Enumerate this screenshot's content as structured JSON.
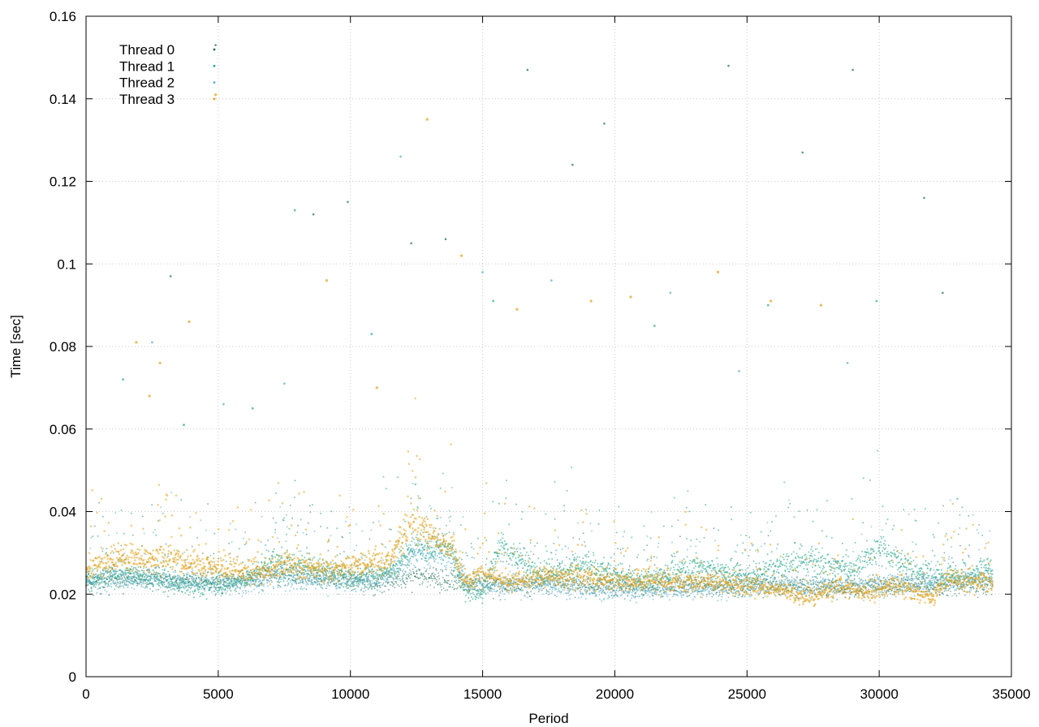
{
  "chart_data": {
    "type": "scatter",
    "title": "",
    "xlabel": "Period",
    "ylabel": "Time [sec]",
    "xlim": [
      0,
      35000
    ],
    "ylim": [
      0,
      0.16
    ],
    "xticks": [
      0,
      5000,
      10000,
      15000,
      20000,
      25000,
      30000,
      35000
    ],
    "xtick_labels": [
      "0",
      "5000",
      "10000",
      "15000",
      "20000",
      "25000",
      "30000",
      "35000"
    ],
    "yticks": [
      0,
      0.02,
      0.04,
      0.06,
      0.08,
      0.1,
      0.12,
      0.14,
      0.16
    ],
    "ytick_labels": [
      "0",
      "0.02",
      "0.04",
      "0.06",
      "0.08",
      "0.1",
      "0.12",
      "0.14",
      "0.16"
    ],
    "grid": true,
    "legend_position": "top-left",
    "x_max_observed": 34300,
    "series": [
      {
        "name": "Thread 0",
        "color": "#1a6b52",
        "trend": [
          [
            0,
            0.023
          ],
          [
            2000,
            0.024
          ],
          [
            4000,
            0.023
          ],
          [
            6000,
            0.023
          ],
          [
            7000,
            0.025
          ],
          [
            9000,
            0.024
          ],
          [
            11000,
            0.023
          ],
          [
            12500,
            0.024
          ],
          [
            14000,
            0.023
          ],
          [
            16000,
            0.022
          ],
          [
            18000,
            0.023
          ],
          [
            20000,
            0.022
          ],
          [
            22000,
            0.022
          ],
          [
            24000,
            0.022
          ],
          [
            26000,
            0.022
          ],
          [
            28000,
            0.021
          ],
          [
            30000,
            0.022
          ],
          [
            32000,
            0.022
          ],
          [
            34300,
            0.022
          ]
        ],
        "outliers": [
          [
            3200,
            0.097
          ],
          [
            4900,
            0.153
          ],
          [
            8600,
            0.112
          ],
          [
            9900,
            0.115
          ],
          [
            12300,
            0.105
          ],
          [
            13600,
            0.106
          ],
          [
            16700,
            0.147
          ],
          [
            18400,
            0.124
          ],
          [
            19600,
            0.134
          ],
          [
            24300,
            0.148
          ],
          [
            27100,
            0.127
          ],
          [
            29000,
            0.147
          ],
          [
            31700,
            0.116
          ],
          [
            32400,
            0.093
          ]
        ]
      },
      {
        "name": "Thread 1",
        "color": "#2aa88a",
        "trend": [
          [
            0,
            0.023
          ],
          [
            1500,
            0.025
          ],
          [
            3000,
            0.023
          ],
          [
            4500,
            0.022
          ],
          [
            6000,
            0.023
          ],
          [
            7000,
            0.028
          ],
          [
            8500,
            0.026
          ],
          [
            10000,
            0.024
          ],
          [
            11500,
            0.025
          ],
          [
            12500,
            0.032
          ],
          [
            13800,
            0.031
          ],
          [
            14300,
            0.021
          ],
          [
            15000,
            0.02
          ],
          [
            15700,
            0.032
          ],
          [
            17000,
            0.025
          ],
          [
            19000,
            0.027
          ],
          [
            21000,
            0.023
          ],
          [
            23000,
            0.027
          ],
          [
            25000,
            0.024
          ],
          [
            27000,
            0.028
          ],
          [
            29000,
            0.026
          ],
          [
            30000,
            0.031
          ],
          [
            31000,
            0.027
          ],
          [
            32500,
            0.024
          ],
          [
            34300,
            0.026
          ]
        ],
        "outliers": [
          [
            1400,
            0.072
          ],
          [
            3700,
            0.061
          ],
          [
            6300,
            0.065
          ],
          [
            7900,
            0.113
          ],
          [
            10800,
            0.083
          ],
          [
            15400,
            0.091
          ],
          [
            21500,
            0.085
          ],
          [
            25800,
            0.09
          ],
          [
            29900,
            0.091
          ]
        ]
      },
      {
        "name": "Thread 2",
        "color": "#5aaec8",
        "trend": [
          [
            0,
            0.023
          ],
          [
            2000,
            0.024
          ],
          [
            4000,
            0.023
          ],
          [
            6000,
            0.022
          ],
          [
            7000,
            0.024
          ],
          [
            9000,
            0.023
          ],
          [
            11000,
            0.023
          ],
          [
            12500,
            0.03
          ],
          [
            13800,
            0.029
          ],
          [
            14500,
            0.022
          ],
          [
            17000,
            0.022
          ],
          [
            20000,
            0.021
          ],
          [
            23000,
            0.021
          ],
          [
            26000,
            0.022
          ],
          [
            28000,
            0.022
          ],
          [
            30000,
            0.022
          ],
          [
            32000,
            0.023
          ],
          [
            34300,
            0.024
          ]
        ],
        "outliers": [
          [
            2500,
            0.081
          ],
          [
            5200,
            0.066
          ],
          [
            7500,
            0.071
          ],
          [
            11900,
            0.126
          ],
          [
            15000,
            0.098
          ],
          [
            17600,
            0.096
          ],
          [
            22100,
            0.093
          ],
          [
            24700,
            0.074
          ],
          [
            28800,
            0.076
          ]
        ]
      },
      {
        "name": "Thread 3",
        "color": "#e0a31c",
        "trend": [
          [
            0,
            0.025
          ],
          [
            1000,
            0.029
          ],
          [
            2000,
            0.028
          ],
          [
            3000,
            0.029
          ],
          [
            4000,
            0.027
          ],
          [
            5500,
            0.026
          ],
          [
            6800,
            0.025
          ],
          [
            7500,
            0.027
          ],
          [
            9000,
            0.026
          ],
          [
            10500,
            0.027
          ],
          [
            11500,
            0.028
          ],
          [
            12300,
            0.038
          ],
          [
            13000,
            0.034
          ],
          [
            14000,
            0.03
          ],
          [
            14300,
            0.023
          ],
          [
            15000,
            0.025
          ],
          [
            15800,
            0.023
          ],
          [
            17000,
            0.024
          ],
          [
            19000,
            0.024
          ],
          [
            20000,
            0.023
          ],
          [
            21500,
            0.023
          ],
          [
            23000,
            0.023
          ],
          [
            25000,
            0.022
          ],
          [
            26500,
            0.021
          ],
          [
            27500,
            0.019
          ],
          [
            28500,
            0.022
          ],
          [
            29500,
            0.02
          ],
          [
            30500,
            0.022
          ],
          [
            32000,
            0.019
          ],
          [
            32500,
            0.024
          ],
          [
            34300,
            0.023
          ]
        ],
        "outliers": [
          [
            1900,
            0.081
          ],
          [
            2400,
            0.068
          ],
          [
            2800,
            0.076
          ],
          [
            3900,
            0.086
          ],
          [
            4900,
            0.141
          ],
          [
            9100,
            0.096
          ],
          [
            11000,
            0.07
          ],
          [
            12900,
            0.135
          ],
          [
            14200,
            0.102
          ],
          [
            16300,
            0.089
          ],
          [
            19100,
            0.091
          ],
          [
            20600,
            0.092
          ],
          [
            23900,
            0.098
          ],
          [
            25900,
            0.091
          ],
          [
            27800,
            0.09
          ]
        ]
      }
    ]
  }
}
